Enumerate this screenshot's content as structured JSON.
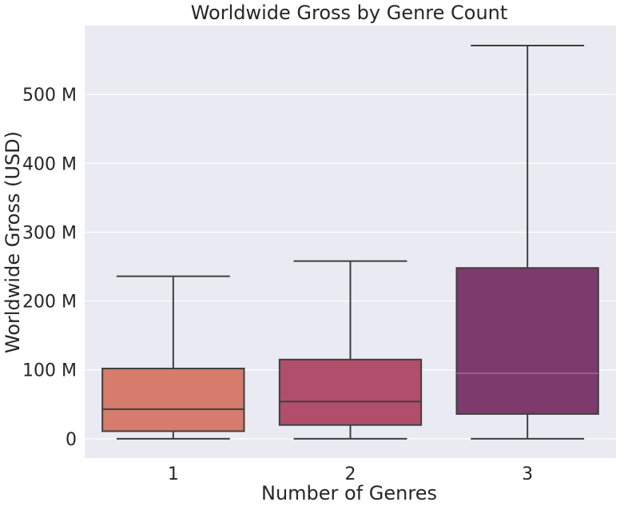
{
  "chart_data": {
    "type": "box",
    "title": "Worldwide Gross by Genre Count",
    "xlabel": "Number of Genres",
    "ylabel": "Worldwide Gross (USD)",
    "ylim": [
      -28,
      600
    ],
    "yticks": [
      0,
      100,
      200,
      300,
      400,
      500
    ],
    "ytick_labels": [
      "0",
      "100 M",
      "200 M",
      "300 M",
      "400 M",
      "500 M"
    ],
    "grid": true,
    "boxes": [
      {
        "label": "1",
        "whisker_low": 0,
        "q1": 11,
        "median": 43,
        "q3": 102,
        "whisker_high": 236,
        "color": "#D67C6C",
        "median_color": "#3f3f3f"
      },
      {
        "label": "2",
        "whisker_low": 0,
        "q1": 20,
        "median": 54,
        "q3": 115,
        "whisker_high": 258,
        "color": "#B14E6B",
        "median_color": "#3f3f3f"
      },
      {
        "label": "3",
        "whisker_low": 0,
        "q1": 36,
        "median": 95,
        "q3": 248,
        "whisker_high": 571,
        "color": "#7D3A6C",
        "median_color": "#9b5e8a"
      }
    ]
  }
}
